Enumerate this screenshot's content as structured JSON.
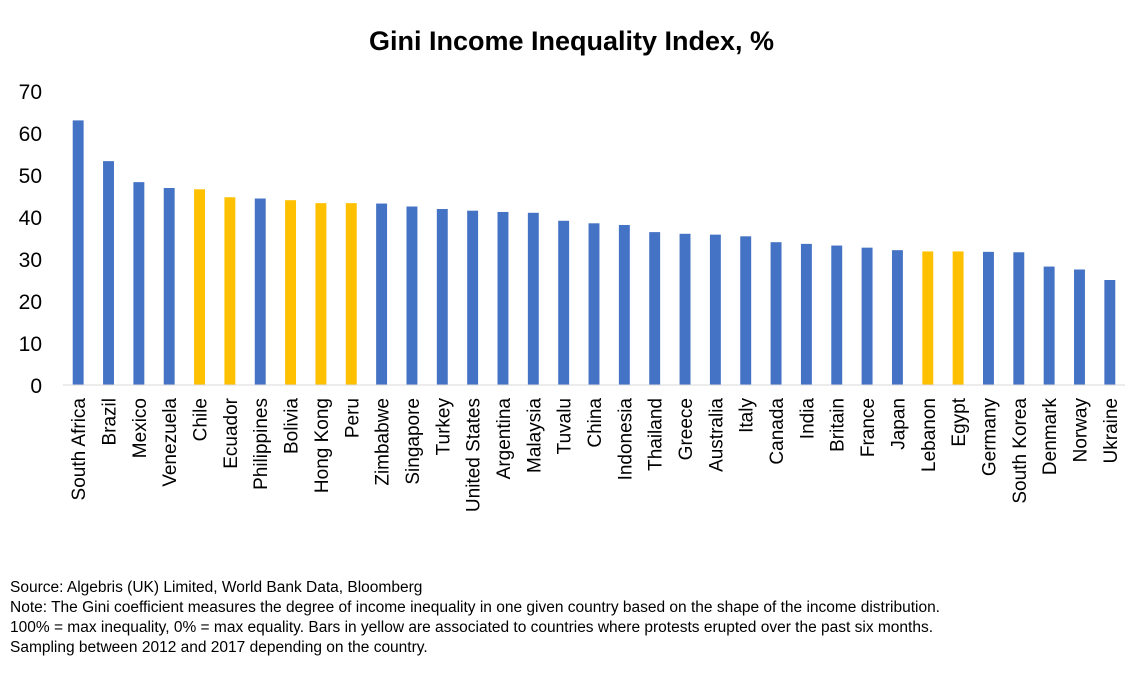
{
  "chart_data": {
    "type": "bar",
    "title": "Gini Income Inequality Index, %",
    "xlabel": "",
    "ylabel": "",
    "ylim": [
      0,
      70
    ],
    "yticks": [
      0,
      10,
      20,
      30,
      40,
      50,
      60,
      70
    ],
    "grid": false,
    "legend": "none",
    "colors": {
      "default": "#4472C4",
      "highlight": "#FFC000"
    },
    "categories": [
      "South Africa",
      "Brazil",
      "Mexico",
      "Venezuela",
      "Chile",
      "Ecuador",
      "Philippines",
      "Bolivia",
      "Hong Kong",
      "Peru",
      "Zimbabwe",
      "Singapore",
      "Turkey",
      "United States",
      "Argentina",
      "Malaysia",
      "Tuvalu",
      "China",
      "Indonesia",
      "Thailand",
      "Greece",
      "Australia",
      "Italy",
      "Canada",
      "India",
      "Britain",
      "France",
      "Japan",
      "Lebanon",
      "Egypt",
      "Germany",
      "South Korea",
      "Denmark",
      "Norway",
      "Ukraine"
    ],
    "values": [
      63.0,
      53.3,
      48.3,
      46.9,
      46.6,
      44.7,
      44.4,
      44.0,
      43.3,
      43.3,
      43.2,
      42.5,
      41.9,
      41.5,
      41.2,
      41.0,
      39.1,
      38.5,
      38.1,
      36.4,
      36.0,
      35.8,
      35.4,
      34.0,
      33.6,
      33.2,
      32.7,
      32.1,
      31.8,
      31.8,
      31.7,
      31.6,
      28.2,
      27.5,
      25.0
    ],
    "highlighted": [
      "Chile",
      "Ecuador",
      "Bolivia",
      "Hong Kong",
      "Peru",
      "Lebanon",
      "Egypt"
    ]
  },
  "notes": {
    "source": "Source: Algebris (UK) Limited, World Bank Data, Bloomberg",
    "note1": "Note: The Gini coefficient measures the degree of income inequality in one given country based on the shape of the income distribution.",
    "note2": "100% = max inequality, 0% = max equality. Bars in yellow are associated to countries where protests erupted over the past six months.",
    "note3": "Sampling between 2012 and 2017 depending on the country."
  }
}
